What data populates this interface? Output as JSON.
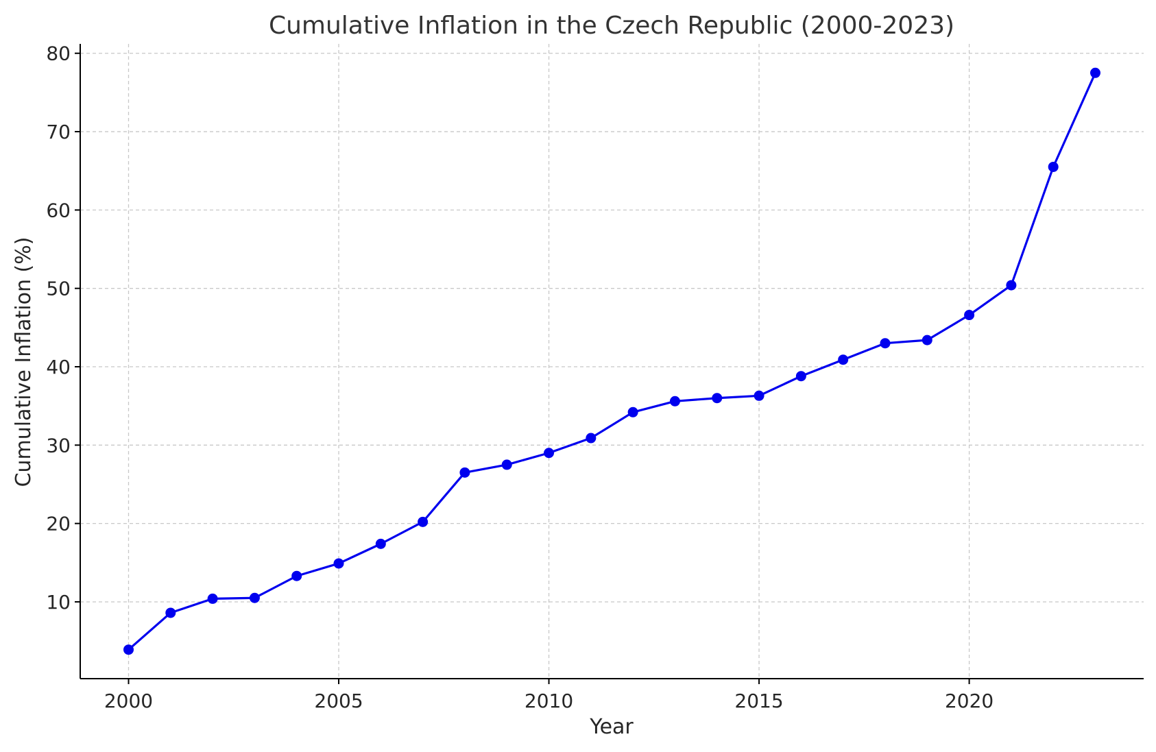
{
  "chart_data": {
    "type": "line",
    "title": "Cumulative Inflation in the Czech Republic (2000-2023)",
    "xlabel": "Year",
    "ylabel": "Cumulative Inflation (%)",
    "x": [
      2000,
      2001,
      2002,
      2003,
      2004,
      2005,
      2006,
      2007,
      2008,
      2009,
      2010,
      2011,
      2012,
      2013,
      2014,
      2015,
      2016,
      2017,
      2018,
      2019,
      2020,
      2021,
      2022,
      2023
    ],
    "series": [
      {
        "values": [
          3.9,
          8.6,
          10.4,
          10.5,
          13.3,
          14.9,
          17.4,
          20.2,
          26.5,
          27.5,
          29.0,
          30.9,
          34.2,
          35.6,
          36.0,
          36.3,
          38.8,
          40.9,
          43.0,
          43.4,
          46.6,
          50.4,
          65.5,
          77.5
        ],
        "color": "#0000ee",
        "marker": "circle"
      }
    ],
    "xlim": [
      1998.85,
      2024.15
    ],
    "ylim": [
      0.2,
      81.2
    ],
    "xticks": [
      2000,
      2005,
      2010,
      2015,
      2020
    ],
    "xtick_labels": [
      "2000",
      "2005",
      "2010",
      "2015",
      "2020"
    ],
    "yticks": [
      10,
      20,
      30,
      40,
      50,
      60,
      70,
      80
    ],
    "ytick_labels": [
      "10",
      "20",
      "30",
      "40",
      "50",
      "60",
      "70",
      "80"
    ],
    "grid": true,
    "legend": "none"
  }
}
